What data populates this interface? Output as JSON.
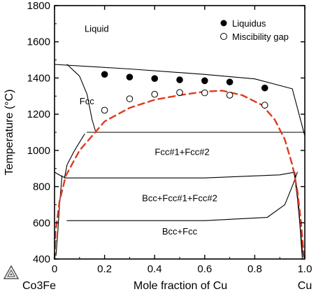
{
  "chart_data": {
    "type": "scatter",
    "xlabel": "Mole fraction of Cu",
    "ylabel": "Temperature (°C)",
    "xlim": [
      0,
      1
    ],
    "ylim": [
      400,
      1800
    ],
    "x_ticks": [
      "0",
      "0.2",
      "0.4",
      "0.6",
      "0.8",
      "1.0"
    ],
    "x_tick_values": [
      0,
      0.2,
      0.4,
      0.6,
      0.8,
      1.0
    ],
    "y_ticks": [
      "400",
      "600",
      "800",
      "1000",
      "1200",
      "1400",
      "1600",
      "1800"
    ],
    "y_tick_values": [
      400,
      600,
      800,
      1000,
      1200,
      1400,
      1600,
      1800
    ],
    "endpoint_labels": {
      "left": "Co3Fe",
      "right": "Cu"
    },
    "regions": [
      {
        "label": "Liquid",
        "x": 0.12,
        "y": 1655
      },
      {
        "label": "Fcc",
        "x": 0.1,
        "y": 1255
      },
      {
        "label": "Fcc#1+Fcc#2",
        "x": 0.51,
        "y": 975
      },
      {
        "label": "Bcc+Fcc#1+Fcc#2",
        "x": 0.5,
        "y": 720
      },
      {
        "label": "Bcc+Fcc",
        "x": 0.5,
        "y": 535
      }
    ],
    "legend_position": "top-right",
    "series": [
      {
        "name": "Liquidus",
        "marker": "filled-circle",
        "x": [
          0.2,
          0.3,
          0.4,
          0.5,
          0.6,
          0.7,
          0.84
        ],
        "y": [
          1420,
          1405,
          1397,
          1390,
          1385,
          1378,
          1345
        ]
      },
      {
        "name": "Miscibility gap",
        "marker": "open-circle",
        "x": [
          0.2,
          0.3,
          0.4,
          0.5,
          0.6,
          0.7,
          0.84
        ],
        "y": [
          1222,
          1285,
          1310,
          1320,
          1318,
          1305,
          1250
        ]
      }
    ],
    "calculated_lines": [
      {
        "style": "solid",
        "points": [
          [
            0,
            1475
          ],
          [
            0.3,
            1450
          ],
          [
            0.6,
            1420
          ],
          [
            0.8,
            1395
          ],
          [
            0.95,
            1340
          ],
          [
            1.0,
            1080
          ]
        ]
      },
      {
        "style": "solid",
        "points": [
          [
            0.05,
            1475
          ],
          [
            0.1,
            1410
          ],
          [
            0.13,
            1310
          ],
          [
            0.15,
            1170
          ],
          [
            0.165,
            1100
          ]
        ]
      },
      {
        "style": "solid",
        "points": [
          [
            0.13,
            1100
          ],
          [
            1.0,
            1100
          ]
        ]
      },
      {
        "style": "solid",
        "points": [
          [
            0.12,
            1090
          ],
          [
            0.08,
            1000
          ],
          [
            0.05,
            920
          ],
          [
            0.04,
            850
          ]
        ]
      },
      {
        "style": "solid",
        "points": [
          [
            0,
            880
          ],
          [
            0.025,
            860
          ],
          [
            0.04,
            850
          ]
        ]
      },
      {
        "style": "solid",
        "points": [
          [
            0.04,
            848
          ],
          [
            0.6,
            848
          ],
          [
            0.9,
            865
          ],
          [
            0.96,
            880
          ]
        ]
      },
      {
        "style": "solid",
        "points": [
          [
            0.05,
            612
          ],
          [
            0.6,
            612
          ],
          [
            0.85,
            630
          ],
          [
            0.92,
            700
          ],
          [
            0.955,
            820
          ],
          [
            0.97,
            880
          ]
        ]
      },
      {
        "style": "solid",
        "points": [
          [
            0.03,
            860
          ],
          [
            0.02,
            700
          ],
          [
            0.013,
            550
          ],
          [
            0.006,
            420
          ]
        ]
      },
      {
        "style": "solid",
        "points": [
          [
            0.955,
            900
          ],
          [
            0.97,
            740
          ],
          [
            0.98,
            600
          ],
          [
            0.99,
            450
          ],
          [
            0.995,
            410
          ]
        ]
      },
      {
        "style": "solid",
        "points": [
          [
            0.96,
            880
          ],
          [
            0.975,
            700
          ],
          [
            0.985,
            500
          ],
          [
            0.99,
            405
          ]
        ]
      },
      {
        "style": "dashed",
        "color": "#e03a1e",
        "points": [
          [
            0.0,
            400
          ],
          [
            0.005,
            560
          ],
          [
            0.02,
            720
          ],
          [
            0.045,
            860
          ],
          [
            0.1,
            1000
          ],
          [
            0.2,
            1160
          ],
          [
            0.3,
            1235
          ],
          [
            0.4,
            1280
          ],
          [
            0.5,
            1305
          ],
          [
            0.6,
            1325
          ],
          [
            0.67,
            1330
          ],
          [
            0.75,
            1305
          ],
          [
            0.83,
            1250
          ],
          [
            0.88,
            1170
          ],
          [
            0.92,
            1060
          ],
          [
            0.95,
            920
          ],
          [
            0.97,
            780
          ],
          [
            0.985,
            600
          ],
          [
            0.995,
            440
          ],
          [
            1.0,
            400
          ]
        ]
      }
    ]
  }
}
